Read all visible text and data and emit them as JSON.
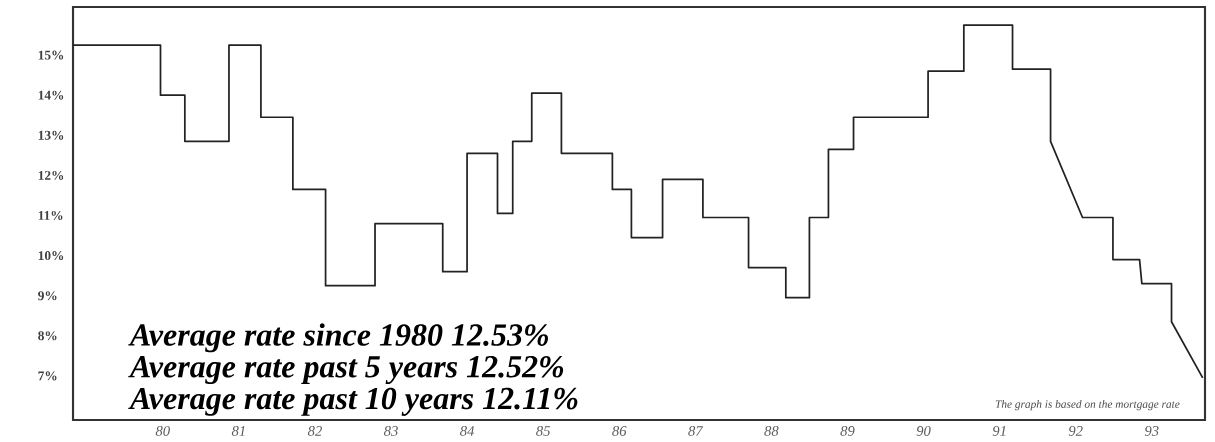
{
  "chart_data": {
    "type": "line",
    "x": [
      1978.82,
      1979.97,
      1979.97,
      1980.29,
      1980.29,
      1980.87,
      1980.87,
      1981.29,
      1981.29,
      1981.71,
      1981.71,
      1982.14,
      1982.14,
      1982.79,
      1982.79,
      1983.68,
      1983.68,
      1984.0,
      1984.0,
      1984.4,
      1984.4,
      1984.6,
      1984.6,
      1984.85,
      1984.85,
      1985.24,
      1985.24,
      1985.91,
      1985.91,
      1986.16,
      1986.16,
      1986.57,
      1986.57,
      1987.1,
      1987.1,
      1987.7,
      1987.7,
      1988.19,
      1988.19,
      1988.5,
      1988.5,
      1988.75,
      1988.75,
      1989.08,
      1989.08,
      1990.06,
      1990.06,
      1990.53,
      1990.53,
      1991.17,
      1991.17,
      1991.67,
      1991.67,
      1992.09,
      1992.49,
      1992.49,
      1992.84,
      1992.87,
      1993.26,
      1993.26,
      1993.67
    ],
    "values": [
      15.25,
      15.25,
      14.0,
      14.0,
      12.85,
      12.85,
      15.25,
      15.25,
      13.45,
      13.45,
      11.65,
      11.65,
      9.25,
      9.25,
      10.8,
      10.8,
      9.6,
      9.6,
      12.55,
      12.55,
      11.05,
      11.05,
      12.85,
      12.85,
      14.05,
      14.05,
      12.55,
      12.55,
      11.65,
      11.65,
      10.45,
      10.45,
      11.9,
      11.9,
      10.95,
      10.95,
      9.7,
      9.7,
      8.95,
      8.95,
      10.95,
      10.95,
      12.65,
      12.65,
      13.45,
      13.45,
      14.6,
      14.6,
      15.75,
      15.75,
      14.65,
      14.65,
      12.85,
      10.95,
      10.95,
      9.9,
      9.9,
      9.3,
      9.3,
      8.35,
      6.95
    ],
    "color": "#222222",
    "line_style": "solid",
    "xlim": [
      1978.82,
      1993.7
    ],
    "ylim": [
      5.9,
      16.2
    ],
    "xticks": [
      {
        "value": 1980,
        "label": "80"
      },
      {
        "value": 1981,
        "label": "81"
      },
      {
        "value": 1982,
        "label": "82"
      },
      {
        "value": 1983,
        "label": "83"
      },
      {
        "value": 1984,
        "label": "84"
      },
      {
        "value": 1985,
        "label": "85"
      },
      {
        "value": 1986,
        "label": "86"
      },
      {
        "value": 1987,
        "label": "87"
      },
      {
        "value": 1988,
        "label": "88"
      },
      {
        "value": 1989,
        "label": "89"
      },
      {
        "value": 1990,
        "label": "90"
      },
      {
        "value": 1991,
        "label": "91"
      },
      {
        "value": 1992,
        "label": "92"
      },
      {
        "value": 1993,
        "label": "93"
      }
    ],
    "yticks": [
      {
        "value": 7,
        "label": "7%"
      },
      {
        "value": 8,
        "label": "8%"
      },
      {
        "value": 9,
        "label": "9%"
      },
      {
        "value": 10,
        "label": "10%"
      },
      {
        "value": 11,
        "label": "11%"
      },
      {
        "value": 12,
        "label": "12%"
      },
      {
        "value": 13,
        "label": "13%"
      },
      {
        "value": 14,
        "label": "14%"
      },
      {
        "value": 15,
        "label": "15%"
      }
    ],
    "grid": false,
    "annotations": [
      "Average rate since 1980 12.53%",
      "Average rate past 5 years 12.52%",
      "Average rate past 10 years 12.11%",
      "The graph is based on the mortgage rate"
    ]
  }
}
